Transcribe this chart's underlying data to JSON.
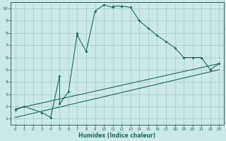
{
  "xlabel": "Humidex (Indice chaleur)",
  "bg_color": "#cce8e8",
  "grid_color": "#aacccc",
  "line_color": "#1a6b5a",
  "xlim": [
    -0.5,
    23.5
  ],
  "ylim": [
    0.5,
    10.5
  ],
  "curve1_x": [
    0,
    1,
    3,
    4,
    5,
    5,
    6,
    7,
    7,
    8,
    9,
    10,
    11,
    11,
    12,
    13,
    14,
    15,
    16,
    17,
    18,
    19,
    20,
    21,
    22,
    23
  ],
  "curve1_y": [
    1.7,
    2.0,
    1.5,
    1.1,
    4.5,
    2.2,
    3.2,
    8.0,
    7.8,
    6.5,
    9.8,
    10.3,
    10.1,
    10.2,
    10.2,
    10.1,
    9.0,
    8.4,
    7.8,
    7.3,
    6.8,
    6.0,
    6.0,
    6.0,
    5.0,
    5.5
  ],
  "line2_x": [
    0,
    23
  ],
  "line2_y": [
    1.8,
    5.5
  ],
  "line3_x": [
    0,
    23
  ],
  "line3_y": [
    1.1,
    5.0
  ],
  "xticks": [
    0,
    1,
    2,
    3,
    4,
    5,
    6,
    7,
    8,
    9,
    10,
    11,
    12,
    13,
    14,
    15,
    16,
    17,
    18,
    19,
    20,
    21,
    22,
    23
  ],
  "yticks": [
    1,
    2,
    3,
    4,
    5,
    6,
    7,
    8,
    9,
    10
  ]
}
